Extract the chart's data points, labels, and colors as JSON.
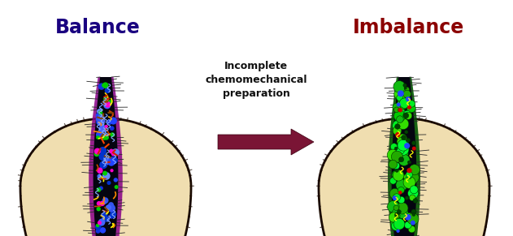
{
  "background_color": "#ffffff",
  "title_left": "Balance",
  "title_right": "Imbalance",
  "title_left_color": "#1a0080",
  "title_right_color": "#8b0000",
  "arrow_label_line1": "Incomplete",
  "arrow_label_line2": "chemomechanical",
  "arrow_label_line3": "preparation",
  "arrow_color": "#7a1535",
  "tooth_color": "#f0deb0",
  "tooth_outline_color": "#1a0a00",
  "fig_width": 6.31,
  "fig_height": 2.91,
  "dpi": 100
}
